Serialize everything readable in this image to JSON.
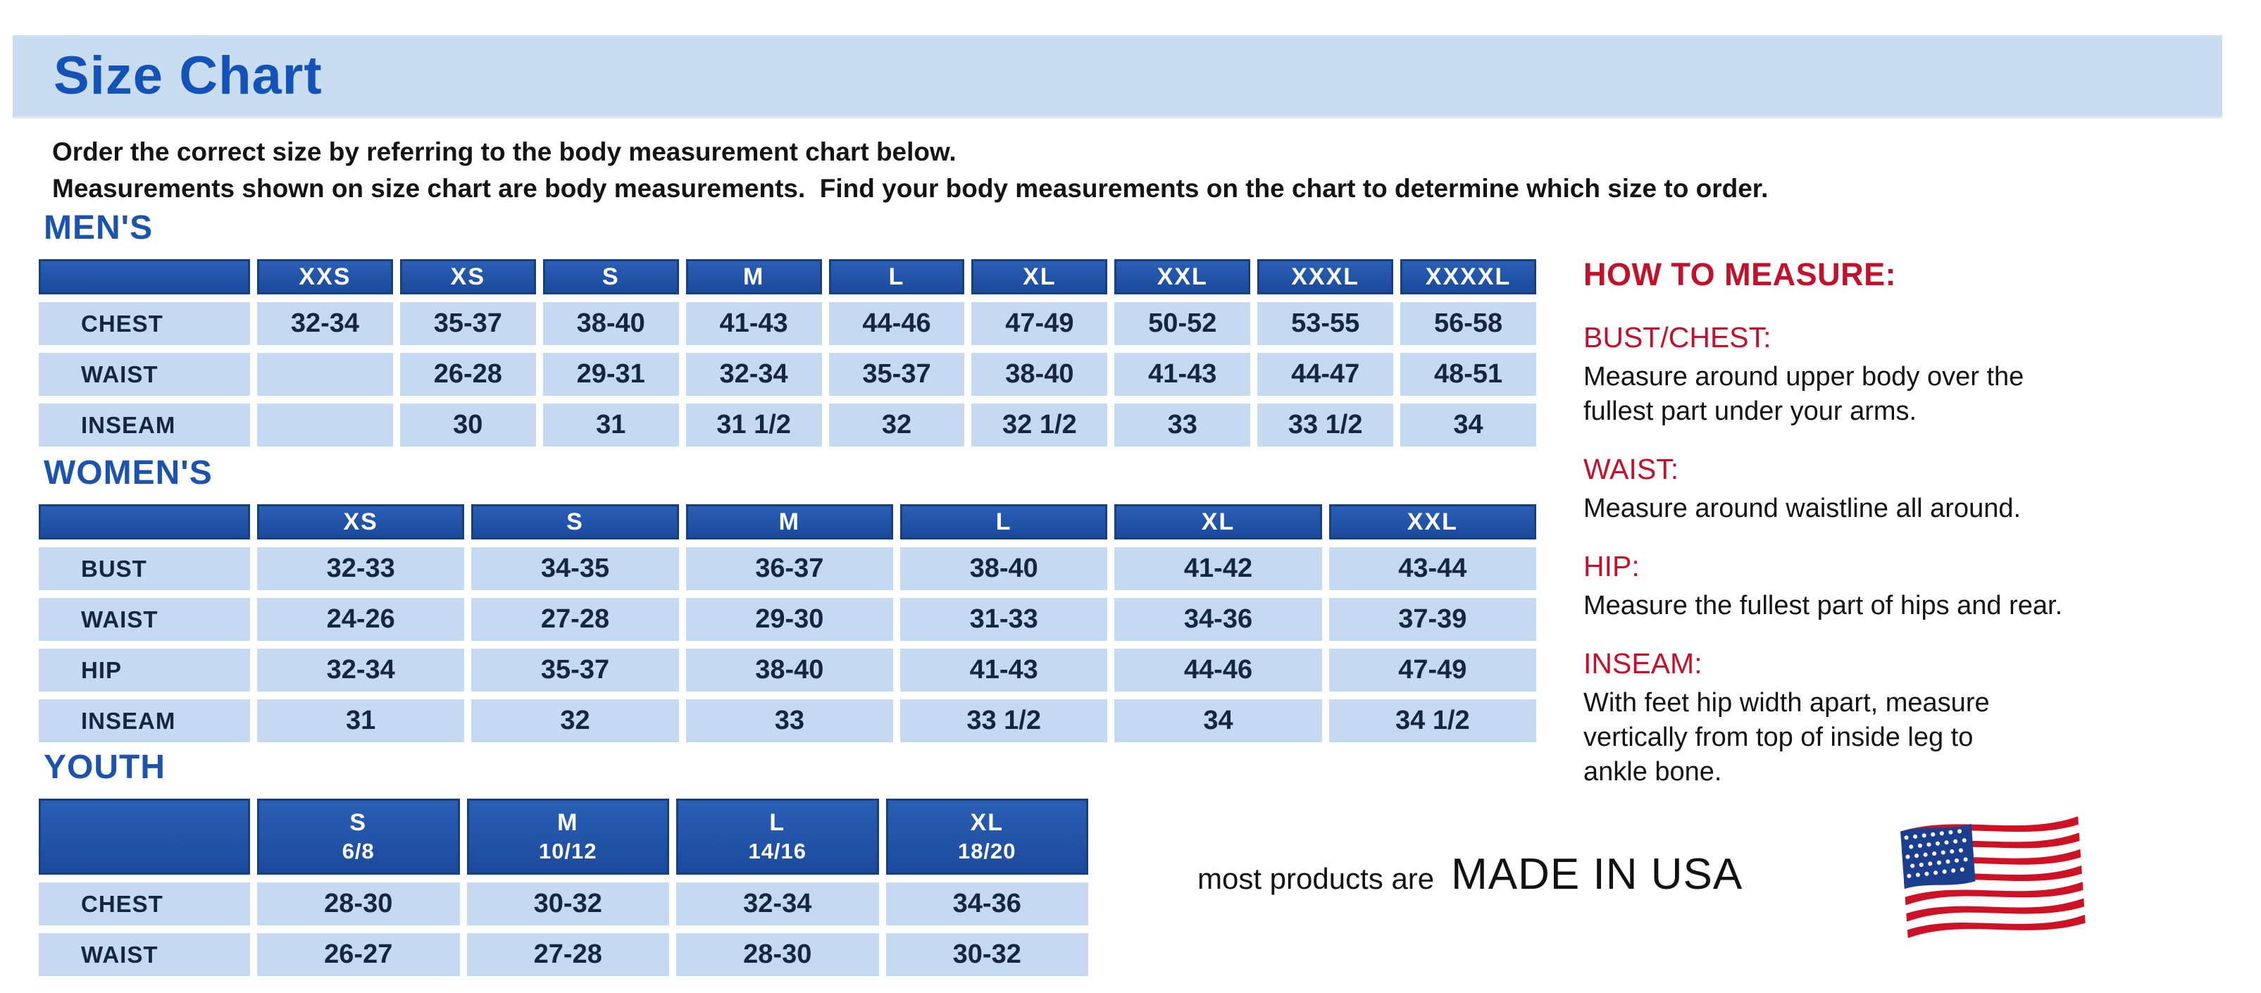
{
  "title": "Size Chart",
  "intro": {
    "line1": "Order the correct size by referring to the body measurement chart below.",
    "line2": "Measurements shown on size chart are body measurements.  Find your body measurements on the chart to determine which size to order."
  },
  "tables": {
    "mens": {
      "heading": "MEN'S",
      "columns": [
        "XXS",
        "XS",
        "S",
        "M",
        "L",
        "XL",
        "XXL",
        "XXXL",
        "XXXXL"
      ],
      "rows": [
        {
          "label": "CHEST",
          "values": [
            "32-34",
            "35-37",
            "38-40",
            "41-43",
            "44-46",
            "47-49",
            "50-52",
            "53-55",
            "56-58"
          ]
        },
        {
          "label": "WAIST",
          "values": [
            "",
            "26-28",
            "29-31",
            "32-34",
            "35-37",
            "38-40",
            "41-43",
            "44-47",
            "48-51"
          ]
        },
        {
          "label": "INSEAM",
          "values": [
            "",
            "30",
            "31",
            "31 1/2",
            "32",
            "32 1/2",
            "33",
            "33 1/2",
            "34"
          ]
        }
      ]
    },
    "womens": {
      "heading": "WOMEN'S",
      "columns": [
        "XS",
        "S",
        "M",
        "L",
        "XL",
        "XXL"
      ],
      "rows": [
        {
          "label": "BUST",
          "values": [
            "32-33",
            "34-35",
            "36-37",
            "38-40",
            "41-42",
            "43-44"
          ]
        },
        {
          "label": "WAIST",
          "values": [
            "24-26",
            "27-28",
            "29-30",
            "31-33",
            "34-36",
            "37-39"
          ]
        },
        {
          "label": "HIP",
          "values": [
            "32-34",
            "35-37",
            "38-40",
            "41-43",
            "44-46",
            "47-49"
          ]
        },
        {
          "label": "INSEAM",
          "values": [
            "31",
            "32",
            "33",
            "33 1/2",
            "34",
            "34 1/2"
          ]
        }
      ]
    },
    "youth": {
      "heading": "YOUTH",
      "columns": [
        {
          "label": "S",
          "sub": "6/8"
        },
        {
          "label": "M",
          "sub": "10/12"
        },
        {
          "label": "L",
          "sub": "14/16"
        },
        {
          "label": "XL",
          "sub": "18/20"
        }
      ],
      "rows": [
        {
          "label": "CHEST",
          "values": [
            "28-30",
            "30-32",
            "32-34",
            "34-36"
          ]
        },
        {
          "label": "WAIST",
          "values": [
            "26-27",
            "27-28",
            "28-30",
            "30-32"
          ]
        }
      ]
    }
  },
  "how_to_measure": {
    "heading": "HOW TO MEASURE:",
    "items": [
      {
        "label": "BUST/CHEST:",
        "text": "Measure around upper body over the\nfullest part under your arms."
      },
      {
        "label": "WAIST:",
        "text": "Measure around waistline all around."
      },
      {
        "label": "HIP:",
        "text": "Measure the fullest part of hips and rear."
      },
      {
        "label": "INSEAM:",
        "text": "With feet hip width apart, measure\nvertically from top of inside leg to\nankle bone."
      }
    ]
  },
  "footer": {
    "prefix": "most products are",
    "emphasis": "MADE IN USA",
    "flag_icon": "usa-flag-icon"
  },
  "colors": {
    "banner_blue": "#cadcf2",
    "title_blue": "#1353b7",
    "heading_blue": "#1b53ad",
    "table_header_blue": "#1f51a4",
    "table_cell_blue": "#c5d9f1",
    "accent_red": "#c3112b",
    "flag_red": "#cf1126",
    "flag_blue": "#1c3e8e"
  }
}
